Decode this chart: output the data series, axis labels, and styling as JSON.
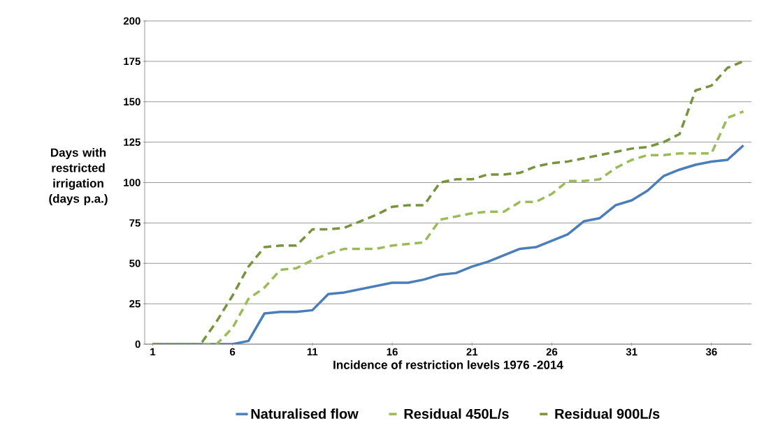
{
  "chart_data": {
    "type": "line",
    "xlabel": "Incidence of restriction levels 1976 -2014",
    "ylabel": "Days with restricted irrigation (days p.a.)",
    "x": [
      1,
      2,
      3,
      4,
      5,
      6,
      7,
      8,
      9,
      10,
      11,
      12,
      13,
      14,
      15,
      16,
      17,
      18,
      19,
      20,
      21,
      22,
      23,
      24,
      25,
      26,
      27,
      28,
      29,
      30,
      31,
      32,
      33,
      34,
      35,
      36,
      37,
      38
    ],
    "series": [
      {
        "name": "Naturalised flow",
        "color": "#4a7ebb",
        "line_style": "solid",
        "values": [
          0,
          0,
          0,
          0,
          0,
          0,
          2,
          19,
          20,
          20,
          21,
          31,
          32,
          34,
          36,
          38,
          38,
          40,
          43,
          44,
          48,
          51,
          55,
          59,
          60,
          64,
          68,
          76,
          78,
          86,
          89,
          95,
          104,
          108,
          111,
          113,
          114,
          123
        ]
      },
      {
        "name": "Residual 450L/s",
        "color": "#9bbb59",
        "line_style": "dashed",
        "values": [
          0,
          0,
          0,
          0,
          0,
          10,
          28,
          35,
          46,
          47,
          52,
          56,
          59,
          59,
          59,
          61,
          62,
          63,
          77,
          79,
          81,
          82,
          82,
          88,
          88,
          93,
          101,
          101,
          102,
          109,
          114,
          117,
          117,
          118,
          118,
          118,
          140,
          144
        ]
      },
      {
        "name": "Residual 900L/s",
        "color": "#77933c",
        "line_style": "dashed",
        "values": [
          0,
          0,
          0,
          0,
          14,
          30,
          48,
          60,
          61,
          61,
          71,
          71,
          72,
          76,
          80,
          85,
          86,
          86,
          100,
          102,
          102,
          105,
          105,
          106,
          110,
          112,
          113,
          115,
          117,
          119,
          121,
          122,
          125,
          130,
          157,
          160,
          171,
          175
        ]
      }
    ],
    "xlim": [
      0.5,
      38.5
    ],
    "xticks": [
      1,
      6,
      11,
      16,
      21,
      26,
      31,
      36
    ],
    "ylim": [
      0,
      200
    ],
    "yticks": [
      0,
      25,
      50,
      75,
      100,
      125,
      150,
      175,
      200
    ],
    "grid": "y",
    "legend": "bottom"
  }
}
